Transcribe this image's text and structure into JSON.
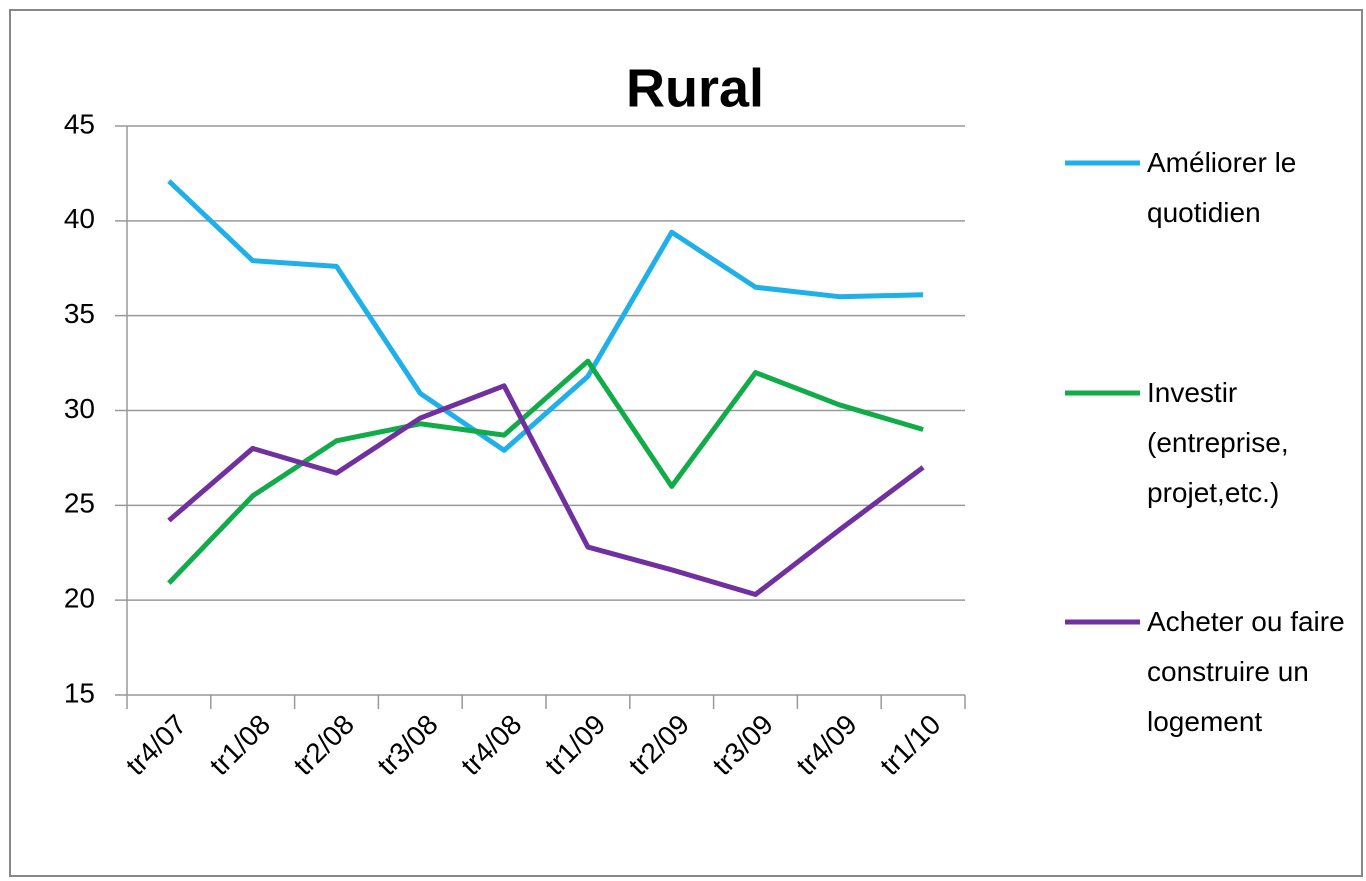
{
  "chart_data": {
    "type": "line",
    "title": "Rural",
    "categories": [
      "tr4/07",
      "tr1/08",
      "tr2/08",
      "tr3/08",
      "tr4/08",
      "tr1/09",
      "tr2/09",
      "tr3/09",
      "tr4/09",
      "tr1/10"
    ],
    "series": [
      {
        "name": "Améliorer le quotidien",
        "color": "#1fb0ea",
        "values": [
          42.1,
          37.9,
          37.6,
          30.9,
          27.9,
          31.8,
          39.4,
          36.5,
          36.0,
          36.1
        ]
      },
      {
        "name": "Investir (entreprise, projet,etc.)",
        "color": "#12ab4a",
        "values": [
          20.9,
          25.5,
          28.4,
          29.3,
          28.7,
          32.6,
          26.0,
          32.0,
          30.3,
          29.0
        ]
      },
      {
        "name": "Acheter ou faire construire un logement",
        "color": "#7030a0",
        "values": [
          24.2,
          28.0,
          26.7,
          29.6,
          31.3,
          22.8,
          21.6,
          20.3,
          23.7,
          27.0
        ]
      }
    ],
    "ylim": [
      15,
      45
    ],
    "yticks": [
      15,
      20,
      25,
      30,
      35,
      40,
      45
    ],
    "grid": true,
    "legend": "right"
  }
}
